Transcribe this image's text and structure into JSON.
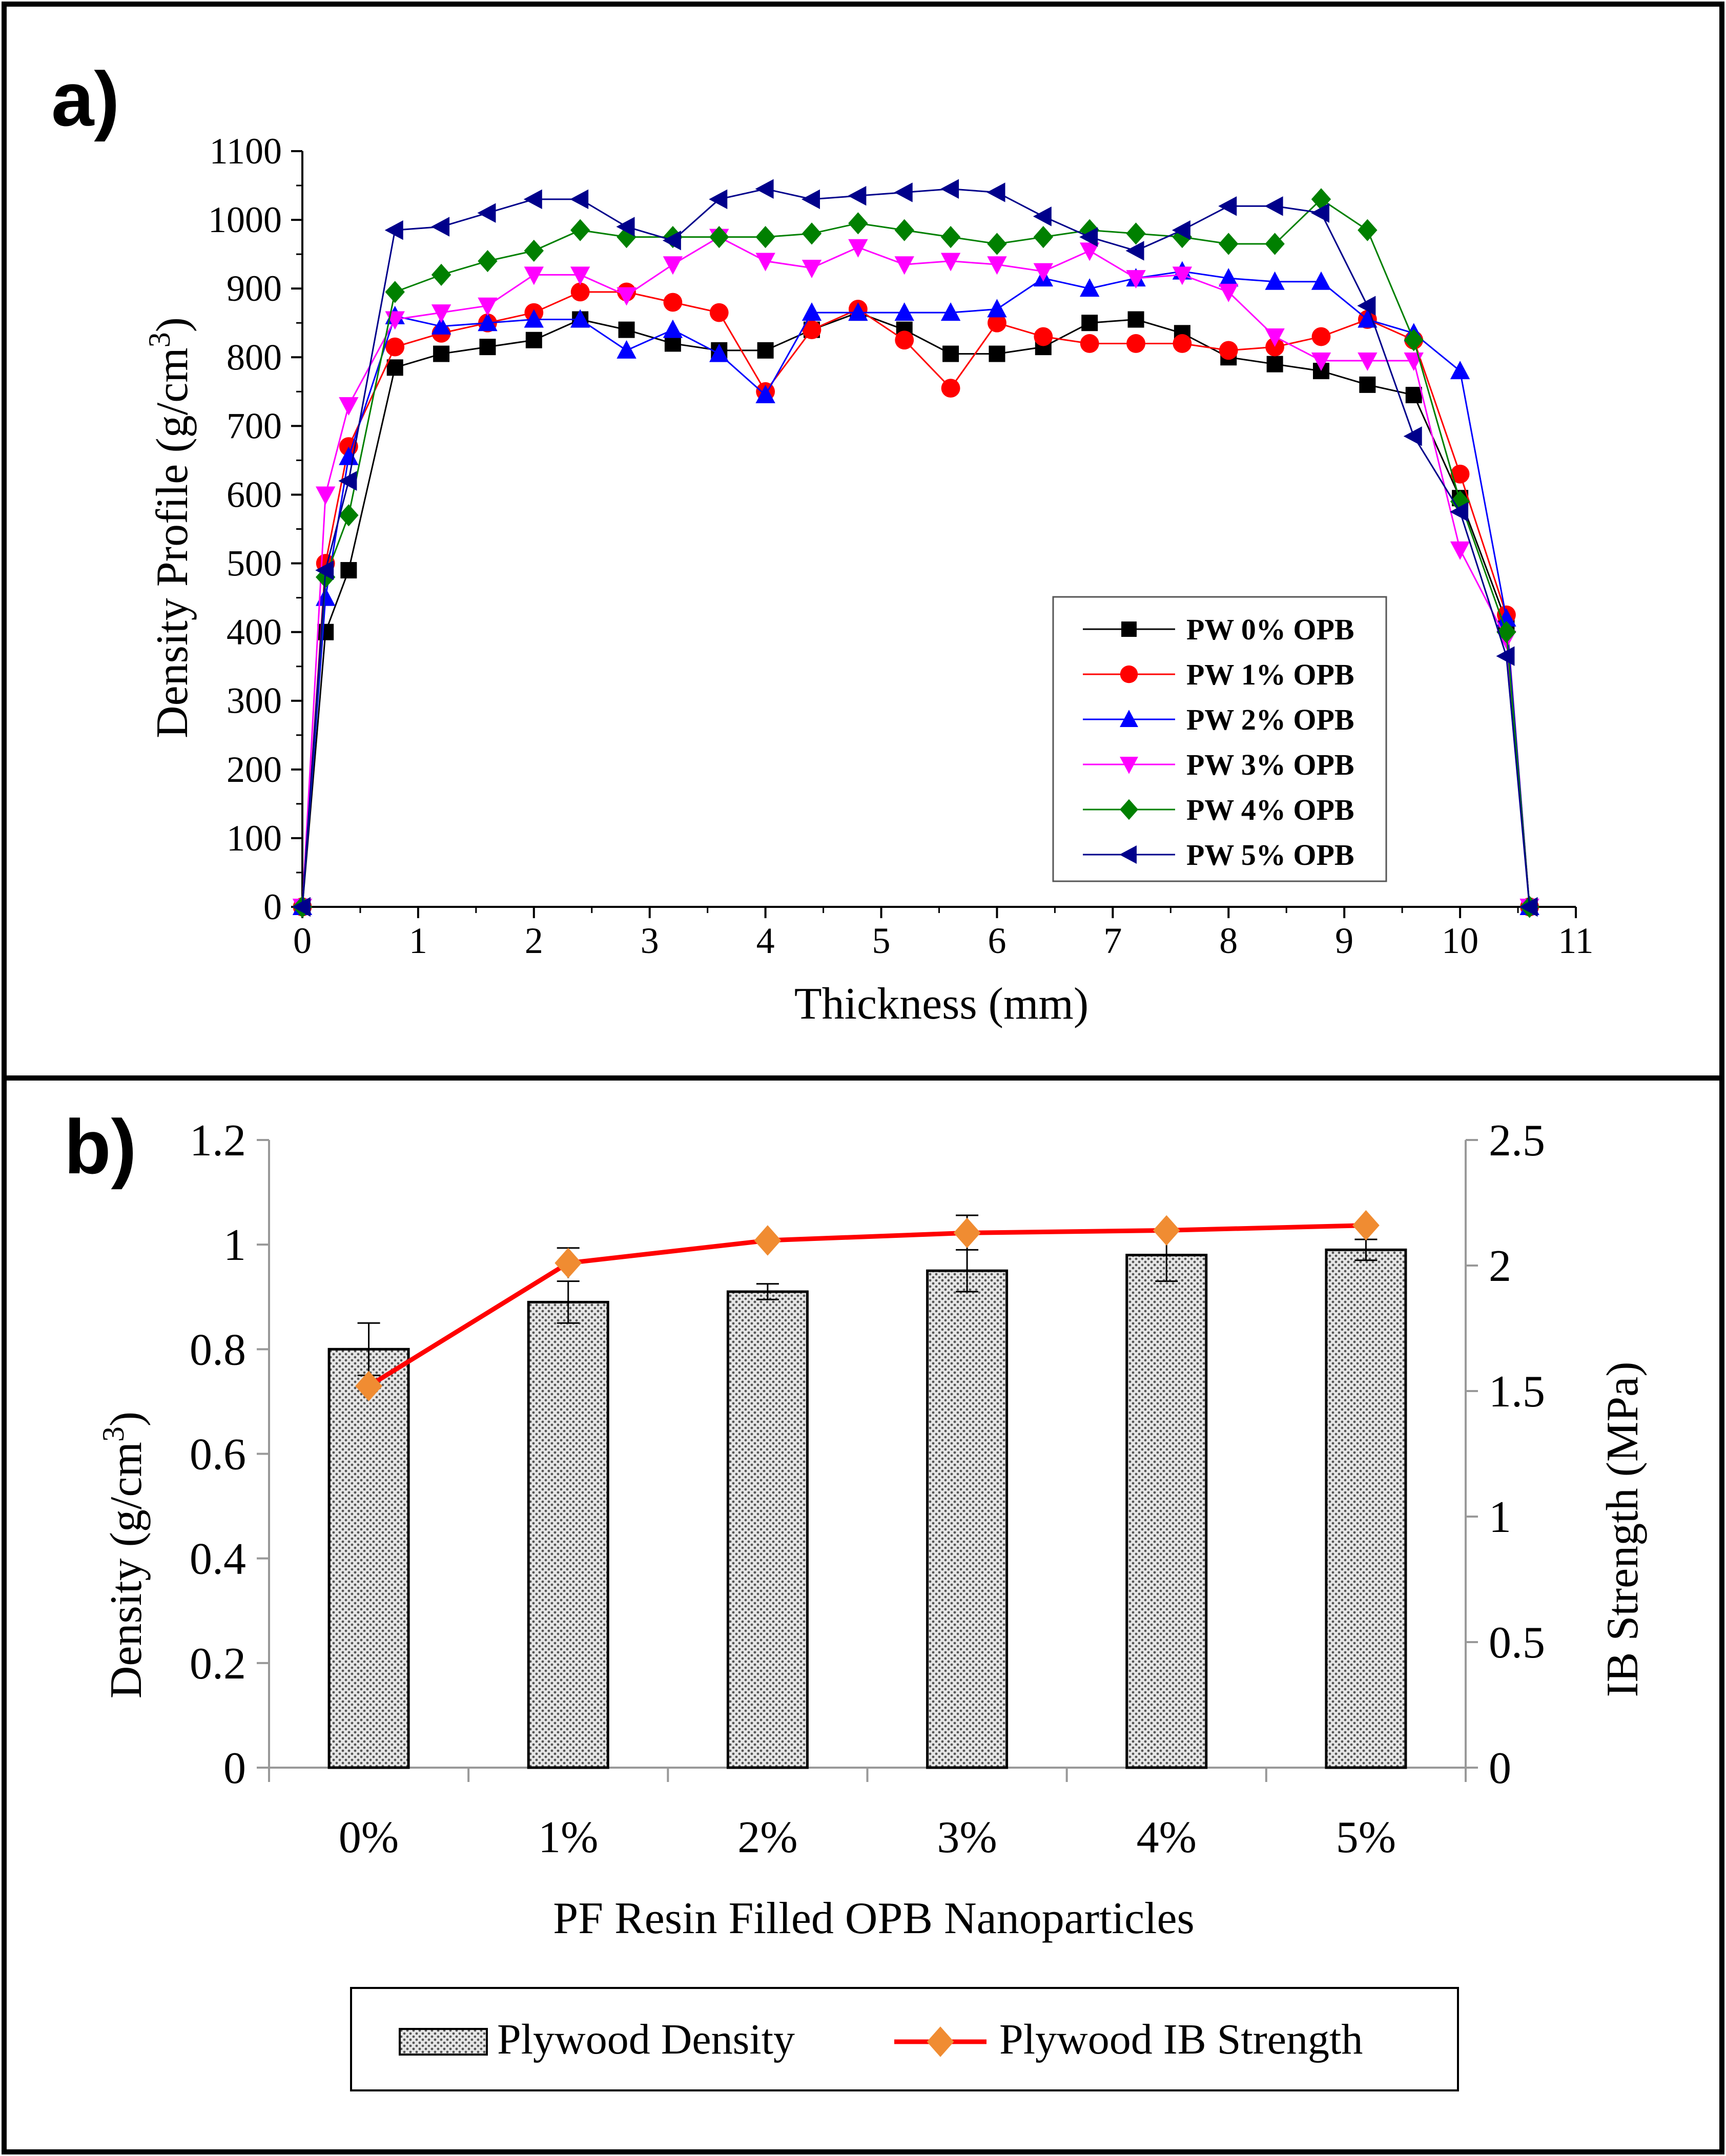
{
  "panels": {
    "a": {
      "label": "a)"
    },
    "b": {
      "label": "b)"
    }
  },
  "colors": {
    "pw0": "#000000",
    "pw1": "#ff0000",
    "pw2": "#0000ff",
    "pw3": "#ff00ff",
    "pw4": "#008000",
    "pw5": "#00008b",
    "bar_fill": "#cfcfcf",
    "ib_line": "#ff0000",
    "ib_marker": "#f08c32"
  },
  "chart_data": [
    {
      "type": "line",
      "xlabel": "Thickness (mm)",
      "ylabel": "Density Profile (g/cm",
      "ylabel_sup": "3",
      "ylabel_close": ")",
      "xlim": [
        0,
        11
      ],
      "ylim": [
        0,
        1100
      ],
      "xticks": [
        "0",
        "1",
        "2",
        "3",
        "4",
        "5",
        "6",
        "7",
        "8",
        "9",
        "10",
        "11"
      ],
      "yticks": [
        "0",
        "100",
        "200",
        "300",
        "400",
        "500",
        "600",
        "700",
        "800",
        "900",
        "1000",
        "1100"
      ],
      "grid": false,
      "legend_position": "bottom-right",
      "x": [
        0,
        0.2,
        0.4,
        0.8,
        1.2,
        1.6,
        2.0,
        2.4,
        2.8,
        3.2,
        3.6,
        4.0,
        4.4,
        4.8,
        5.2,
        5.6,
        6.0,
        6.4,
        6.8,
        7.2,
        7.6,
        8.0,
        8.4,
        8.8,
        9.2,
        9.6,
        10.0,
        10.4,
        10.6
      ],
      "series": [
        {
          "name": "PW 0% OPB",
          "marker": "square",
          "color_key": "pw0",
          "values": [
            0,
            400,
            490,
            785,
            805,
            815,
            825,
            855,
            840,
            820,
            810,
            810,
            840,
            865,
            840,
            805,
            805,
            815,
            850,
            855,
            835,
            800,
            790,
            780,
            760,
            745,
            595,
            415,
            0
          ]
        },
        {
          "name": "PW 1% OPB",
          "marker": "circle",
          "color_key": "pw1",
          "values": [
            0,
            500,
            670,
            815,
            835,
            850,
            865,
            895,
            895,
            880,
            865,
            750,
            840,
            870,
            825,
            755,
            850,
            830,
            820,
            820,
            820,
            810,
            815,
            830,
            855,
            825,
            630,
            425,
            0
          ]
        },
        {
          "name": "PW 2% OPB",
          "marker": "triangle-up",
          "color_key": "pw2",
          "values": [
            0,
            450,
            655,
            860,
            845,
            850,
            855,
            855,
            810,
            840,
            805,
            745,
            865,
            865,
            865,
            865,
            870,
            915,
            900,
            915,
            925,
            915,
            910,
            910,
            855,
            835,
            780,
            420,
            0
          ]
        },
        {
          "name": "PW 3% OPB",
          "marker": "triangle-down",
          "color_key": "pw3",
          "values": [
            0,
            600,
            730,
            855,
            865,
            875,
            920,
            920,
            890,
            935,
            975,
            940,
            930,
            960,
            935,
            940,
            935,
            925,
            955,
            915,
            920,
            895,
            830,
            795,
            795,
            795,
            520,
            390,
            0
          ]
        },
        {
          "name": "PW 4% OPB",
          "marker": "diamond",
          "color_key": "pw4",
          "values": [
            0,
            480,
            570,
            895,
            920,
            940,
            955,
            985,
            975,
            975,
            975,
            975,
            980,
            995,
            985,
            975,
            965,
            975,
            985,
            980,
            975,
            965,
            965,
            1030,
            985,
            825,
            590,
            400,
            0
          ]
        },
        {
          "name": "PW 5% OPB",
          "marker": "triangle-left",
          "color_key": "pw5",
          "values": [
            0,
            490,
            620,
            985,
            990,
            1010,
            1030,
            1030,
            990,
            970,
            1030,
            1045,
            1030,
            1035,
            1040,
            1045,
            1040,
            1005,
            975,
            955,
            985,
            1020,
            1020,
            1010,
            875,
            685,
            575,
            365,
            0
          ]
        }
      ]
    },
    {
      "type": "bar",
      "xlabel": "PF Resin Filled OPB Nanoparticles",
      "ylabel": "Density (g/cm",
      "ylabel_sup": "3",
      "ylabel_close": ")",
      "y2label": "IB Strength (MPa)",
      "categories": [
        "0%",
        "1%",
        "2%",
        "3%",
        "4%",
        "5%"
      ],
      "ylim": [
        0,
        1.2
      ],
      "y2lim": [
        0,
        2.5
      ],
      "yticks": [
        "0",
        "0.2",
        "0.4",
        "0.6",
        "0.8",
        "1",
        "1.2"
      ],
      "y2ticks": [
        "0",
        "0.5",
        "1",
        "1.5",
        "2",
        "2.5"
      ],
      "grid": false,
      "legend_position": "bottom",
      "series": [
        {
          "name": "Plywood Density",
          "kind": "bar",
          "axis": "left",
          "values": [
            0.8,
            0.89,
            0.91,
            0.95,
            0.98,
            0.99
          ],
          "errors": [
            0.05,
            0.04,
            0.015,
            0.04,
            0.05,
            0.02
          ]
        },
        {
          "name": "Plywood IB Strength",
          "kind": "line",
          "axis": "right",
          "values": [
            1.52,
            2.01,
            2.1,
            2.13,
            2.14,
            2.16
          ],
          "errors": [
            0.0,
            0.06,
            0.0,
            0.07,
            0.0,
            0.0
          ]
        }
      ]
    }
  ]
}
